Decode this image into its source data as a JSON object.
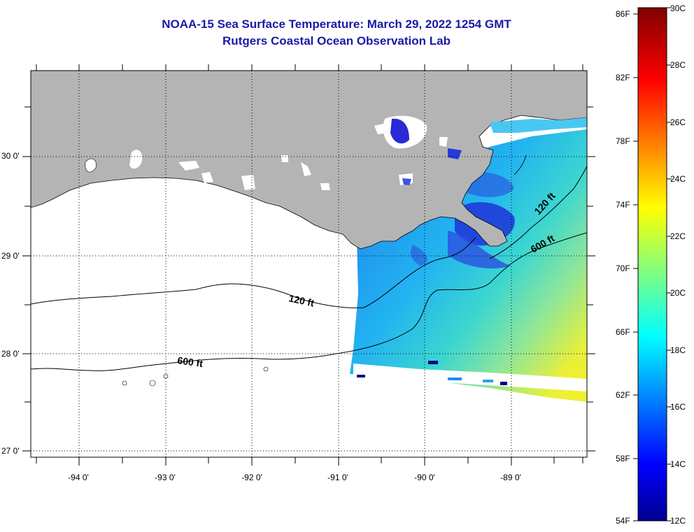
{
  "title": {
    "line1": "NOAA-15 Sea Surface Temperature:  March 29, 2022 1254 GMT",
    "line2": "Rutgers Coastal Ocean Observation Lab"
  },
  "map": {
    "lat_labels": [
      "30 0'",
      "29 0'",
      "28 0'",
      "27 0'"
    ],
    "lon_labels": [
      "-94 0'",
      "-93 0'",
      "-92 0'",
      "-91 0'",
      "-90 0'",
      "-89 0'"
    ],
    "contour_labels": {
      "west_120": "120 ft",
      "west_600": "600 ft",
      "east_120": "120 ft",
      "east_600": "600 ft"
    },
    "land_color": "#b4b4b4",
    "contour_color": "#000000"
  },
  "colorbar": {
    "fahrenheit_labels": [
      "86F",
      "82F",
      "78F",
      "74F",
      "70F",
      "66F",
      "62F",
      "58F",
      "54F"
    ],
    "celsius_labels": [
      "30C",
      "28C",
      "26C",
      "24C",
      "22C",
      "20C",
      "18C",
      "16C",
      "14C",
      "12C"
    ],
    "colormap": "jet"
  }
}
